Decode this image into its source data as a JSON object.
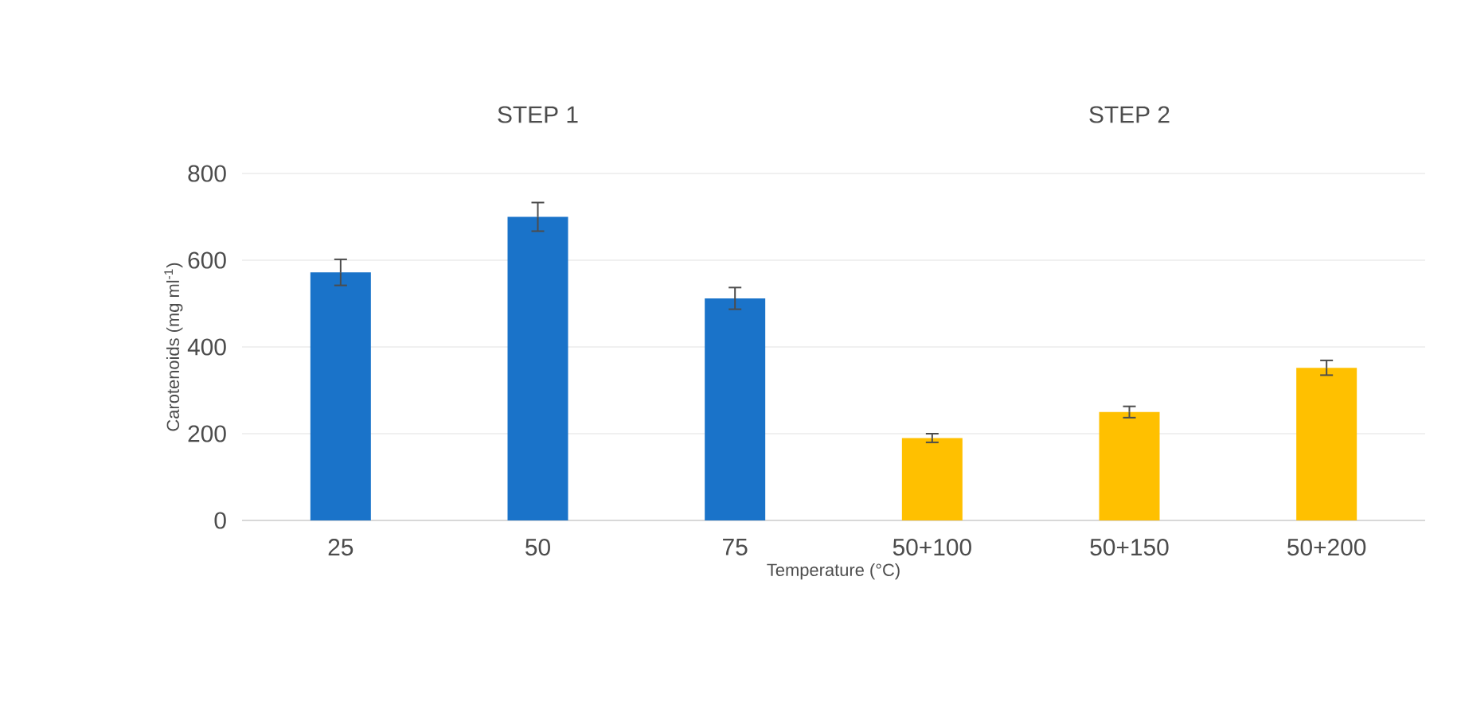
{
  "chart_data": {
    "type": "bar",
    "xlabel": "Temperature (°C)",
    "ylabel": "Carotenoids (mg ml$^{-1}$)",
    "categories": [
      "25",
      "50",
      "75",
      "50+100",
      "50+150",
      "50+200"
    ],
    "values": [
      572,
      700,
      512,
      190,
      250,
      352
    ],
    "errors": [
      30,
      33,
      25,
      10,
      13,
      17
    ],
    "colors": [
      "#1a73c9",
      "#1a73c9",
      "#1a73c9",
      "#ffc000",
      "#ffc000",
      "#ffc000"
    ],
    "ylim": [
      0,
      800
    ],
    "yticks": [
      0,
      200,
      400,
      600,
      800
    ],
    "grid": "y",
    "annotations": [
      "STEP 1",
      "STEP 2"
    ]
  }
}
